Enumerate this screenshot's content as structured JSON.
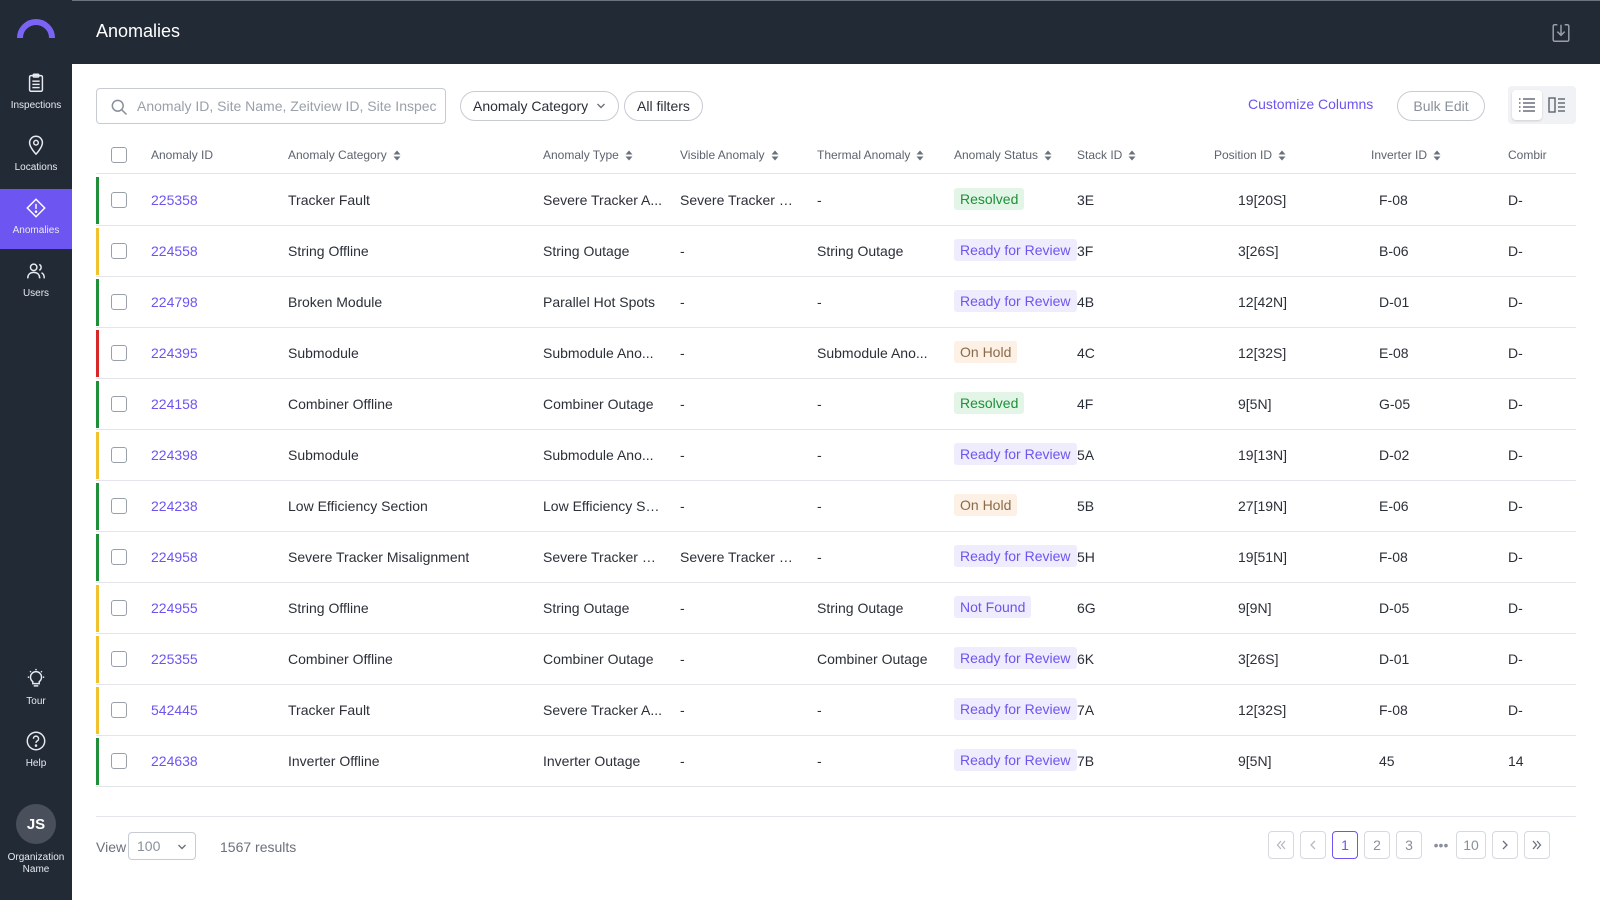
{
  "sidebar": {
    "items": [
      {
        "label": "Inspections",
        "icon": "clipboard-icon"
      },
      {
        "label": "Locations",
        "icon": "location-pin-icon"
      },
      {
        "label": "Anomalies",
        "icon": "warning-diamond-icon",
        "active": true
      },
      {
        "label": "Users",
        "icon": "users-icon"
      }
    ],
    "tour_label": "Tour",
    "help_label": "Help",
    "avatar_initials": "JS",
    "org_name": "Organization Name"
  },
  "header": {
    "title": "Anomalies"
  },
  "toolbar": {
    "search_placeholder": "Anomaly ID, Site Name, Zeitview ID, Site Inspect...",
    "category_filter": "Anomaly Category",
    "all_filters": "All filters",
    "customize_columns": "Customize Columns",
    "bulk_edit": "Bulk Edit"
  },
  "table": {
    "columns": [
      "Anomaly ID",
      "Anomaly Category",
      "Anomaly Type",
      "Visible Anomaly",
      "Thermal Anomaly",
      "Anomaly Status",
      "Stack ID",
      "Position ID",
      "Inverter ID",
      "Combir"
    ],
    "rows": [
      {
        "severity": "#1f8f3a",
        "id": "225358",
        "category": "Tracker Fault",
        "type": "Severe Tracker A...",
        "visible": "Severe Tracker M...",
        "thermal": "-",
        "status": "Resolved",
        "stack": "3E",
        "position": "19[20S]",
        "inverter": "F-08",
        "combiner": "D-"
      },
      {
        "severity": "#f2c12e",
        "id": "224558",
        "category": "String Offline",
        "type": "String Outage",
        "visible": "-",
        "thermal": "String Outage",
        "status": "Ready for Review",
        "stack": "3F",
        "position": "3[26S]",
        "inverter": "B-06",
        "combiner": "D-"
      },
      {
        "severity": "#1f8f3a",
        "id": "224798",
        "category": "Broken Module",
        "type": "Parallel Hot Spots",
        "visible": "-",
        "thermal": "-",
        "status": "Ready for Review",
        "stack": "4B",
        "position": "12[42N]",
        "inverter": "D-01",
        "combiner": "D-"
      },
      {
        "severity": "#d62828",
        "id": "224395",
        "category": "Submodule",
        "type": "Submodule Ano...",
        "visible": "-",
        "thermal": "Submodule Ano...",
        "status": "On Hold",
        "stack": "4C",
        "position": "12[32S]",
        "inverter": "E-08",
        "combiner": "D-"
      },
      {
        "severity": "#1f8f3a",
        "id": "224158",
        "category": "Combiner Offline",
        "type": "Combiner Outage",
        "visible": "-",
        "thermal": "-",
        "status": "Resolved",
        "stack": "4F",
        "position": "9[5N]",
        "inverter": "G-05",
        "combiner": "D-"
      },
      {
        "severity": "#f2c12e",
        "id": "224398",
        "category": "Submodule",
        "type": "Submodule Ano...",
        "visible": "-",
        "thermal": "-",
        "status": "Ready for Review",
        "stack": "5A",
        "position": "19[13N]",
        "inverter": "D-02",
        "combiner": "D-"
      },
      {
        "severity": "#1f8f3a",
        "id": "224238",
        "category": "Low Efficiency Section",
        "type": "Low Efficiency Se...",
        "visible": "-",
        "thermal": "-",
        "status": "On Hold",
        "stack": "5B",
        "position": "27[19N]",
        "inverter": "E-06",
        "combiner": "D-"
      },
      {
        "severity": "#1f8f3a",
        "id": "224958",
        "category": "Severe Tracker Misalignment",
        "type": "Severe Tracker M...",
        "visible": "Severe Tracker M...",
        "thermal": "-",
        "status": "Ready for Review",
        "stack": "5H",
        "position": "19[51N]",
        "inverter": "F-08",
        "combiner": "D-"
      },
      {
        "severity": "#f2c12e",
        "id": "224955",
        "category": "String Offline",
        "type": "String Outage",
        "visible": "-",
        "thermal": "String Outage",
        "status": "Not Found",
        "stack": "6G",
        "position": "9[9N]",
        "inverter": "D-05",
        "combiner": "D-"
      },
      {
        "severity": "#f2c12e",
        "id": "225355",
        "category": "Combiner Offline",
        "type": "Combiner Outage",
        "visible": "-",
        "thermal": "Combiner Outage",
        "status": "Ready for Review",
        "stack": "6K",
        "position": "3[26S]",
        "inverter": "D-01",
        "combiner": "D-"
      },
      {
        "severity": "#f2c12e",
        "id": "542445",
        "category": "Tracker Fault",
        "type": "Severe Tracker A...",
        "visible": "-",
        "thermal": "-",
        "status": "Ready for Review",
        "stack": "7A",
        "position": "12[32S]",
        "inverter": "F-08",
        "combiner": "D-"
      },
      {
        "severity": "#1f8f3a",
        "id": "224638",
        "category": "Inverter Offline",
        "type": "Inverter Outage",
        "visible": "-",
        "thermal": "-",
        "status": "Ready for Review",
        "stack": "7B",
        "position": "9[5N]",
        "inverter": "45",
        "combiner": "14"
      }
    ]
  },
  "status_styles": {
    "Resolved": {
      "bg": "#e3f5e6",
      "fg": "#1f8f3a"
    },
    "Ready for Review": {
      "bg": "#efecfd",
      "fg": "#6c55f0"
    },
    "On Hold": {
      "bg": "#fdf0e4",
      "fg": "#8a6a4a"
    },
    "Not Found": {
      "bg": "#efecfd",
      "fg": "#6c55f0"
    }
  },
  "footer": {
    "view_label": "View",
    "page_size": "100",
    "results": "1567 results",
    "pages": [
      "1",
      "2",
      "3",
      "10"
    ],
    "ellipsis": "•••",
    "current_page": "1"
  },
  "colors": {
    "accent": "#6c55f0",
    "sidebar_bg": "#222a36"
  }
}
